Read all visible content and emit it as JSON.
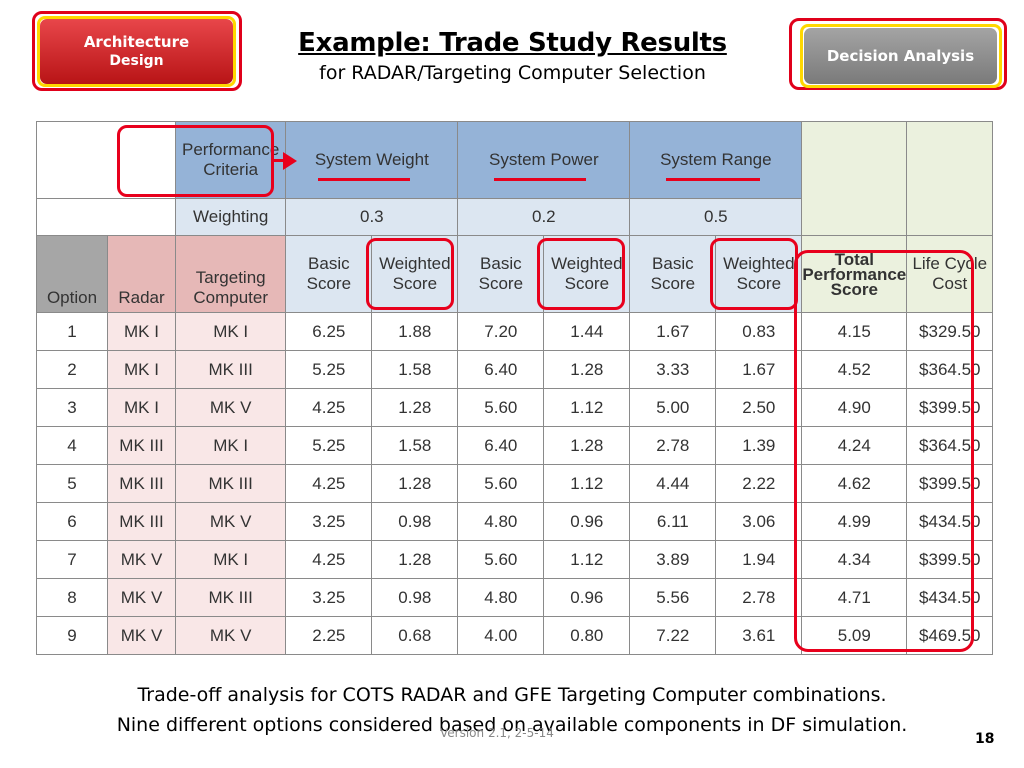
{
  "nav": {
    "architecture_line1": "Architecture",
    "architecture_line2": "Design",
    "decision_analysis": "Decision Analysis"
  },
  "header": {
    "title": "Example: Trade Study Results",
    "subtitle": "for RADAR/Targeting Computer Selection"
  },
  "table": {
    "performance_criteria": "Performance Criteria",
    "criteria": [
      "System Weight",
      "System Power",
      "System Range"
    ],
    "weighting_label": "Weighting",
    "weights": [
      "0.3",
      "0.2",
      "0.5"
    ],
    "columns": {
      "option": "Option",
      "radar": "Radar",
      "targeting_computer": "Targeting Computer",
      "basic_score": "Basic Score",
      "weighted_score": "Weighted Score",
      "total_performance_score": "Total Performance Score",
      "life_cycle_cost": "Life Cycle Cost"
    },
    "rows": [
      {
        "option": "1",
        "radar": "MK I",
        "computer": "MK I",
        "w_basic": "6.25",
        "w_weighted": "1.88",
        "p_basic": "7.20",
        "p_weighted": "1.44",
        "r_basic": "1.67",
        "r_weighted": "0.83",
        "total": "4.15",
        "cost": "$329.50"
      },
      {
        "option": "2",
        "radar": "MK I",
        "computer": "MK III",
        "w_basic": "5.25",
        "w_weighted": "1.58",
        "p_basic": "6.40",
        "p_weighted": "1.28",
        "r_basic": "3.33",
        "r_weighted": "1.67",
        "total": "4.52",
        "cost": "$364.50"
      },
      {
        "option": "3",
        "radar": "MK I",
        "computer": "MK V",
        "w_basic": "4.25",
        "w_weighted": "1.28",
        "p_basic": "5.60",
        "p_weighted": "1.12",
        "r_basic": "5.00",
        "r_weighted": "2.50",
        "total": "4.90",
        "cost": "$399.50"
      },
      {
        "option": "4",
        "radar": "MK III",
        "computer": "MK I",
        "w_basic": "5.25",
        "w_weighted": "1.58",
        "p_basic": "6.40",
        "p_weighted": "1.28",
        "r_basic": "2.78",
        "r_weighted": "1.39",
        "total": "4.24",
        "cost": "$364.50"
      },
      {
        "option": "5",
        "radar": "MK III",
        "computer": "MK III",
        "w_basic": "4.25",
        "w_weighted": "1.28",
        "p_basic": "5.60",
        "p_weighted": "1.12",
        "r_basic": "4.44",
        "r_weighted": "2.22",
        "total": "4.62",
        "cost": "$399.50"
      },
      {
        "option": "6",
        "radar": "MK III",
        "computer": "MK V",
        "w_basic": "3.25",
        "w_weighted": "0.98",
        "p_basic": "4.80",
        "p_weighted": "0.96",
        "r_basic": "6.11",
        "r_weighted": "3.06",
        "total": "4.99",
        "cost": "$434.50"
      },
      {
        "option": "7",
        "radar": "MK V",
        "computer": "MK I",
        "w_basic": "4.25",
        "w_weighted": "1.28",
        "p_basic": "5.60",
        "p_weighted": "1.12",
        "r_basic": "3.89",
        "r_weighted": "1.94",
        "total": "4.34",
        "cost": "$399.50"
      },
      {
        "option": "8",
        "radar": "MK V",
        "computer": "MK III",
        "w_basic": "3.25",
        "w_weighted": "0.98",
        "p_basic": "4.80",
        "p_weighted": "0.96",
        "r_basic": "5.56",
        "r_weighted": "2.78",
        "total": "4.71",
        "cost": "$434.50"
      },
      {
        "option": "9",
        "radar": "MK V",
        "computer": "MK V",
        "w_basic": "2.25",
        "w_weighted": "0.68",
        "p_basic": "4.00",
        "p_weighted": "0.80",
        "r_basic": "7.22",
        "r_weighted": "3.61",
        "total": "5.09",
        "cost": "$469.50"
      }
    ]
  },
  "caption": {
    "line1": "Trade-off analysis for COTS RADAR and GFE Targeting Computer combinations.",
    "line2": "Nine different options considered based on available components in DF simulation."
  },
  "footer": {
    "version": "Version 2.1, 2-5-14",
    "page_number": "18"
  },
  "colors": {
    "highlight_red": "#e8001c",
    "header_blue": "#95b3d7",
    "header_light_blue": "#dce6f1",
    "header_green": "#ebf1de",
    "header_pink": "#e6b8b7",
    "header_gray": "#a6a6a6"
  }
}
